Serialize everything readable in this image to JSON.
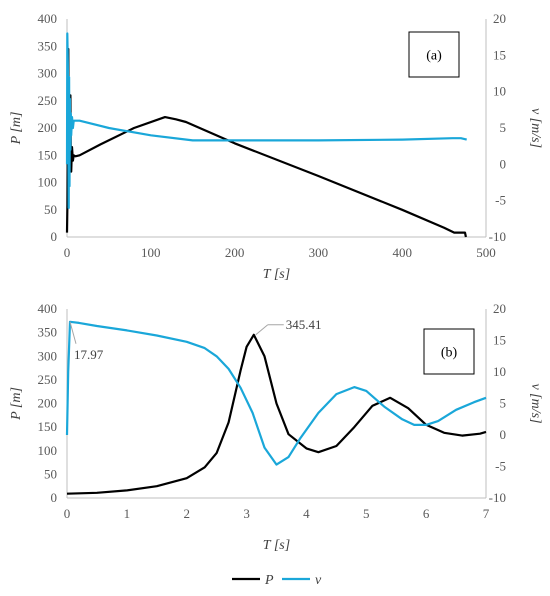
{
  "colors": {
    "P": "#000000",
    "v": "#1aa7d9",
    "axis": "#bfbfbf",
    "callout": "#a6a6a6"
  },
  "legend": [
    {
      "name": "P",
      "color": "#000000"
    },
    {
      "name": "v",
      "color": "#1aa7d9"
    }
  ],
  "chart_data": [
    {
      "panel": "(a)",
      "type": "line",
      "xlabel": "T [s]",
      "ylabel": "P [m]",
      "y2label": "v [m/s]",
      "xlim": [
        0,
        500
      ],
      "ylim": [
        0,
        400
      ],
      "y2lim": [
        -10,
        20
      ],
      "xticks": [
        0,
        100,
        200,
        300,
        400,
        500
      ],
      "yticks": [
        0,
        50,
        100,
        150,
        200,
        250,
        300,
        350,
        400
      ],
      "y2ticks": [
        -10,
        -5,
        0,
        5,
        10,
        15,
        20
      ],
      "grid": false,
      "series": [
        {
          "name": "P",
          "axis": "left",
          "points": [
            [
              0,
              8
            ],
            [
              0.5,
              60
            ],
            [
              1,
              200
            ],
            [
              1.5,
              345
            ],
            [
              2,
              130
            ],
            [
              2.5,
              95
            ],
            [
              3,
              200
            ],
            [
              3.5,
              140
            ],
            [
              4,
              260
            ],
            [
              4.5,
              150
            ],
            [
              5,
              120
            ],
            [
              6,
              165
            ],
            [
              7,
              140
            ],
            [
              8,
              150
            ],
            [
              10,
              148
            ],
            [
              15,
              150
            ],
            [
              40,
              170
            ],
            [
              80,
              200
            ],
            [
              117,
              220
            ],
            [
              130,
              216
            ],
            [
              142,
              211
            ],
            [
              200,
              172
            ],
            [
              300,
              112
            ],
            [
              400,
              50
            ],
            [
              450,
              17
            ],
            [
              462,
              8
            ],
            [
              475,
              8
            ],
            [
              476,
              0
            ]
          ]
        },
        {
          "name": "v",
          "axis": "right",
          "points": [
            [
              0,
              0
            ],
            [
              0.3,
              18
            ],
            [
              1,
              14
            ],
            [
              1.5,
              8
            ],
            [
              2,
              -6
            ],
            [
              2.5,
              12
            ],
            [
              3,
              -3
            ],
            [
              3.5,
              9
            ],
            [
              4,
              2
            ],
            [
              4.5,
              7
            ],
            [
              5,
              4
            ],
            [
              6,
              6.5
            ],
            [
              7,
              5
            ],
            [
              8,
              6
            ],
            [
              10,
              6
            ],
            [
              15,
              6
            ],
            [
              50,
              5
            ],
            [
              100,
              4
            ],
            [
              150,
              3.3
            ],
            [
              200,
              3.3
            ],
            [
              300,
              3.3
            ],
            [
              400,
              3.4
            ],
            [
              460,
              3.6
            ],
            [
              470,
              3.6
            ],
            [
              477,
              3.4
            ]
          ]
        }
      ]
    },
    {
      "panel": "(b)",
      "type": "line",
      "xlabel": "T [s]",
      "ylabel": "P [m]",
      "y2label": "v [m/s]",
      "xlim": [
        0,
        7
      ],
      "ylim": [
        0,
        400
      ],
      "y2lim": [
        -10,
        20
      ],
      "xticks": [
        0,
        1,
        2,
        3,
        4,
        5,
        6,
        7
      ],
      "yticks": [
        0,
        50,
        100,
        150,
        200,
        250,
        300,
        350,
        400
      ],
      "y2ticks": [
        -10,
        -5,
        0,
        5,
        10,
        15,
        20
      ],
      "grid": false,
      "annotations": [
        {
          "text": "345.41",
          "series": "P",
          "x": 3.12,
          "y": 345.41
        },
        {
          "text": "17.97",
          "series": "v",
          "x": 0.05,
          "y": 17.97
        }
      ],
      "series": [
        {
          "name": "P",
          "axis": "left",
          "points": [
            [
              0,
              9
            ],
            [
              0.5,
              11
            ],
            [
              1,
              16
            ],
            [
              1.5,
              25
            ],
            [
              2,
              42
            ],
            [
              2.3,
              65
            ],
            [
              2.5,
              95
            ],
            [
              2.7,
              160
            ],
            [
              2.9,
              270
            ],
            [
              3.0,
              320
            ],
            [
              3.12,
              345.41
            ],
            [
              3.3,
              300
            ],
            [
              3.5,
              200
            ],
            [
              3.7,
              135
            ],
            [
              4.0,
              105
            ],
            [
              4.2,
              97
            ],
            [
              4.5,
              110
            ],
            [
              4.8,
              150
            ],
            [
              5.1,
              195
            ],
            [
              5.4,
              212
            ],
            [
              5.7,
              190
            ],
            [
              6.0,
              155
            ],
            [
              6.3,
              138
            ],
            [
              6.6,
              132
            ],
            [
              6.9,
              136
            ],
            [
              7,
              140
            ]
          ]
        },
        {
          "name": "v",
          "axis": "right",
          "points": [
            [
              0,
              0
            ],
            [
              0.02,
              10
            ],
            [
              0.05,
              17.97
            ],
            [
              0.2,
              17.8
            ],
            [
              0.5,
              17.3
            ],
            [
              1,
              16.6
            ],
            [
              1.5,
              15.8
            ],
            [
              2,
              14.8
            ],
            [
              2.3,
              13.8
            ],
            [
              2.5,
              12.5
            ],
            [
              2.7,
              10.5
            ],
            [
              2.9,
              7.5
            ],
            [
              3.1,
              3.5
            ],
            [
              3.3,
              -2
            ],
            [
              3.5,
              -4.7
            ],
            [
              3.7,
              -3.5
            ],
            [
              3.9,
              -0.5
            ],
            [
              4.2,
              3.5
            ],
            [
              4.5,
              6.5
            ],
            [
              4.8,
              7.6
            ],
            [
              5.0,
              7.0
            ],
            [
              5.3,
              4.5
            ],
            [
              5.6,
              2.5
            ],
            [
              5.8,
              1.6
            ],
            [
              6.0,
              1.6
            ],
            [
              6.2,
              2.2
            ],
            [
              6.5,
              4.0
            ],
            [
              6.8,
              5.2
            ],
            [
              7,
              5.9
            ]
          ]
        }
      ]
    }
  ]
}
